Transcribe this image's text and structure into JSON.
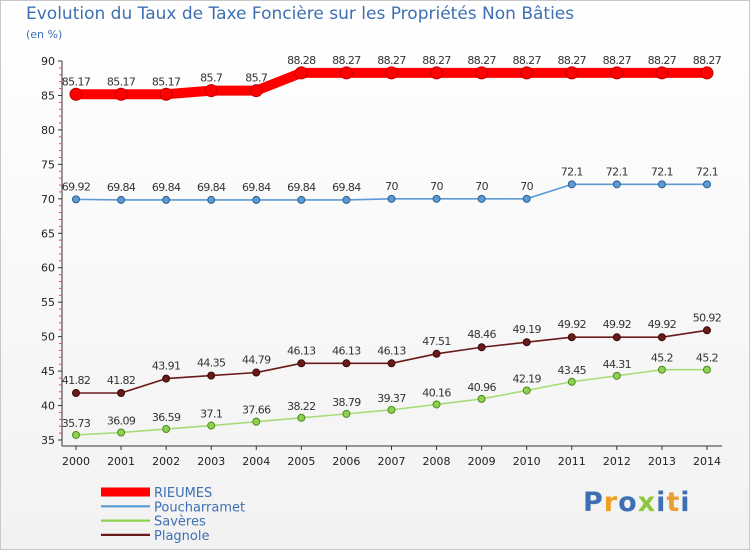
{
  "chart_data": {
    "type": "line",
    "title": "Evolution du Taux de Taxe Foncière sur les Propriétés Non Bâties",
    "subtitle": "(en %)",
    "x": [
      "2000",
      "2001",
      "2002",
      "2003",
      "2004",
      "2005",
      "2006",
      "2007",
      "2008",
      "2009",
      "2010",
      "2011",
      "2012",
      "2013",
      "2014"
    ],
    "ylim": [
      35,
      90
    ],
    "yticks": [
      35,
      40,
      45,
      50,
      55,
      60,
      65,
      70,
      75,
      80,
      85,
      90
    ],
    "grid": false,
    "legend_position": "bottom-left",
    "series": [
      {
        "name": "RIEUMES",
        "color": "#ff0000",
        "values": [
          85.17,
          85.17,
          85.17,
          85.7,
          85.7,
          88.28,
          88.27,
          88.27,
          88.27,
          88.27,
          88.27,
          88.27,
          88.27,
          88.27,
          88.27
        ],
        "labels": [
          "85.17",
          "85.17",
          "85.17",
          "85.7",
          "85.7",
          "88.28",
          "88.27",
          "88.27",
          "88.27",
          "88.27",
          "88.27",
          "88.27",
          "88.27",
          "88.27",
          "88.27"
        ]
      },
      {
        "name": "Poucharramet",
        "color": "#5b9bd5",
        "values": [
          69.92,
          69.84,
          69.84,
          69.84,
          69.84,
          69.84,
          69.84,
          70,
          70,
          70,
          70,
          72.1,
          72.1,
          72.1,
          72.1
        ],
        "labels": [
          "69.92",
          "69.84",
          "69.84",
          "69.84",
          "69.84",
          "69.84",
          "69.84",
          "70",
          "70",
          "70",
          "70",
          "72.1",
          "72.1",
          "72.1",
          "72.1"
        ]
      },
      {
        "name": "Savères",
        "color": "#8fd14f",
        "values": [
          35.73,
          36.09,
          36.59,
          37.1,
          37.66,
          38.22,
          38.79,
          39.37,
          40.16,
          40.96,
          42.19,
          43.45,
          44.31,
          45.2,
          45.2
        ],
        "labels": [
          "35.73",
          "36.09",
          "36.59",
          "37.1",
          "37.66",
          "38.22",
          "38.79",
          "39.37",
          "40.16",
          "40.96",
          "42.19",
          "43.45",
          "44.31",
          "45.2",
          "45.2"
        ]
      },
      {
        "name": "Plagnole",
        "color": "#6b1a1a",
        "values": [
          41.82,
          41.82,
          43.91,
          44.35,
          44.79,
          46.13,
          46.13,
          46.13,
          47.51,
          48.46,
          49.19,
          49.92,
          49.92,
          49.92,
          50.92
        ],
        "labels": [
          "41.82",
          "41.82",
          "43.91",
          "44.35",
          "44.79",
          "46.13",
          "46.13",
          "46.13",
          "47.51",
          "48.46",
          "49.19",
          "49.92",
          "49.92",
          "49.92",
          "50.92"
        ]
      }
    ]
  },
  "brand": {
    "logo_letters": [
      "P",
      "r",
      "o",
      "x",
      "i",
      "t",
      "i"
    ],
    "logo_colors": [
      "#3e6fb3",
      "#f0a020",
      "#3e6fb3",
      "#8dc63f",
      "#3e6fb3",
      "#e8a030",
      "#3e6fb3"
    ]
  }
}
